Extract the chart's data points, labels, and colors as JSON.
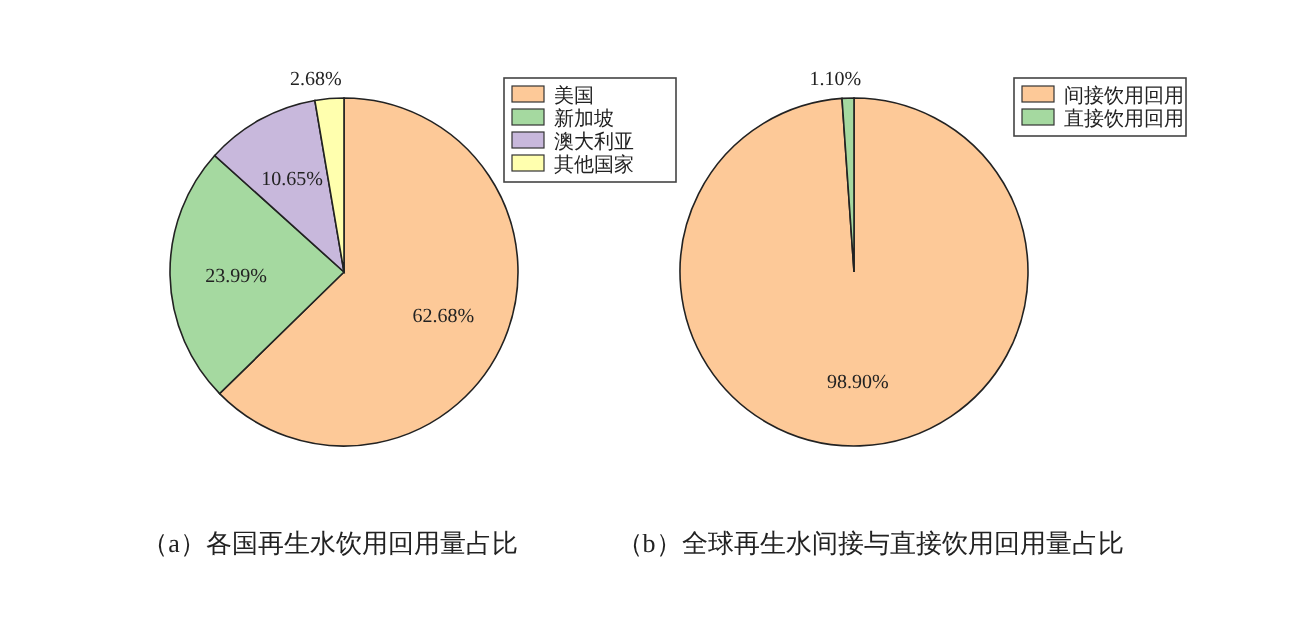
{
  "chart_data": [
    {
      "type": "pie",
      "title": "（a）各国再生水饮用回用量占比",
      "categories": [
        "美国",
        "新加坡",
        "澳大利亚",
        "其他国家"
      ],
      "values": [
        62.68,
        23.99,
        10.65,
        2.68
      ],
      "colors": [
        "#fdc998",
        "#a5d9a0",
        "#c8b8dc",
        "#ffffae"
      ],
      "value_labels": [
        "62.68%",
        "23.99%",
        "10.65%",
        "2.68%"
      ],
      "legend": "top right"
    },
    {
      "type": "pie",
      "title": "（b）全球再生水间接与直接饮用回用量占比",
      "categories": [
        "间接饮用回用",
        "直接饮用回用"
      ],
      "values": [
        98.9,
        1.1
      ],
      "colors": [
        "#fdc998",
        "#a5d9a0"
      ],
      "value_labels": [
        "98.90%",
        "1.10%"
      ],
      "legend": "top right"
    }
  ]
}
